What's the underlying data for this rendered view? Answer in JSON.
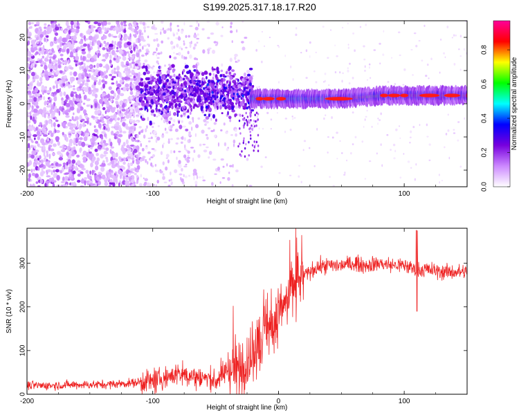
{
  "title": "S199.2025.317.18.17.R20",
  "chart_data": [
    {
      "type": "heatmap",
      "name": "spectrogram",
      "xlabel": "Height of straight line (km)",
      "ylabel": "Frequency (Hz)",
      "xlim": [
        -200,
        150
      ],
      "ylim": [
        -25,
        25
      ],
      "xticks": [
        -200,
        -100,
        0,
        100
      ],
      "yticks": [
        -20,
        -10,
        0,
        10,
        20
      ],
      "colorbar": {
        "label": "Normalized spectral amplitude",
        "range": [
          0.0,
          0.97
        ],
        "ticks": [
          0.0,
          0.2,
          0.4,
          0.6,
          0.8
        ],
        "colormap": [
          "#ffffff",
          "#cc88ff",
          "#7700dd",
          "#0000ff",
          "#00ffff",
          "#00ff00",
          "#ffff00",
          "#ff0000",
          "#ff0099"
        ]
      },
      "description_points": {
        "peak_frequency_hz": [
          {
            "x": -20,
            "y": 1.5
          },
          {
            "x": 0,
            "y": 1.5
          },
          {
            "x": 50,
            "y": 1.5
          },
          {
            "x": 85,
            "y": 2.5
          },
          {
            "x": 120,
            "y": 2.5
          },
          {
            "x": 150,
            "y": 2.5
          }
        ]
      }
    },
    {
      "type": "line",
      "name": "snr",
      "xlabel": "Height of straight line (km)",
      "ylabel": "SNR (10 * v/v)",
      "xlim": [
        -200,
        150
      ],
      "ylim": [
        0,
        380
      ],
      "xticks": [
        -200,
        -100,
        0,
        100
      ],
      "yticks": [
        0,
        100,
        200,
        300
      ],
      "color": "#ee2222",
      "series": [
        {
          "name": "SNR",
          "x": [
            -200,
            -180,
            -160,
            -140,
            -120,
            -110,
            -100,
            -90,
            -80,
            -70,
            -60,
            -50,
            -40,
            -35,
            -30,
            -25,
            -20,
            -15,
            -10,
            -5,
            0,
            5,
            10,
            15,
            20,
            25,
            30,
            40,
            50,
            60,
            70,
            80,
            90,
            100,
            110,
            120,
            130,
            140,
            150
          ],
          "values": [
            20,
            20,
            22,
            22,
            25,
            28,
            30,
            38,
            48,
            42,
            38,
            30,
            55,
            45,
            70,
            65,
            100,
            125,
            155,
            150,
            175,
            200,
            235,
            250,
            270,
            280,
            290,
            295,
            295,
            300,
            295,
            300,
            295,
            295,
            285,
            285,
            280,
            280,
            280
          ]
        }
      ]
    }
  ]
}
